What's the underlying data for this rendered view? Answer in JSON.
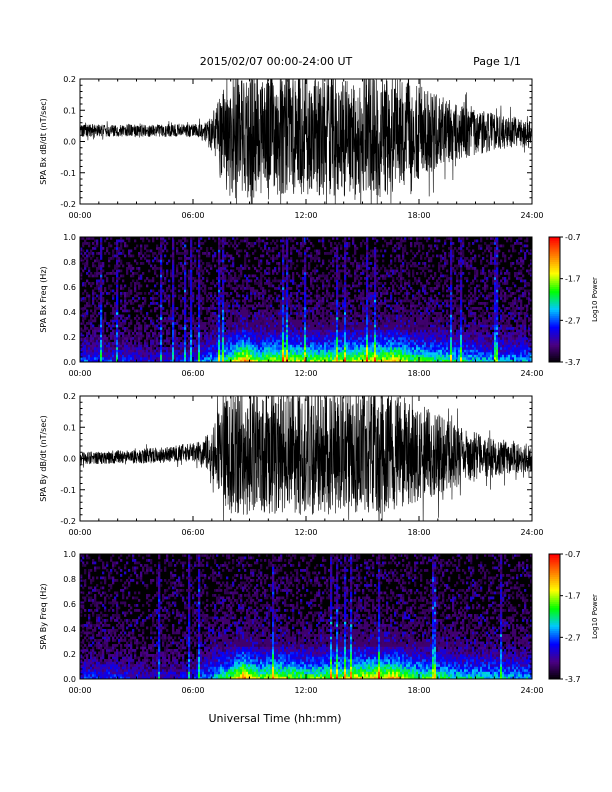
{
  "header": {
    "title": "2015/02/07  00:00-24:00 UT",
    "page": "Page 1/1"
  },
  "footer": {
    "xlabel": "Universal Time (hh:mm)"
  },
  "colorbar": {
    "label": "Log10 Power",
    "ticks": [
      "-0.7",
      "-1.7",
      "-2.7",
      "-3.7"
    ],
    "range": [
      -3.7,
      -0.7
    ],
    "colors": [
      "#000000",
      "#4b0082",
      "#0000ff",
      "#00c8ff",
      "#00ff00",
      "#ffff00",
      "#ff8000",
      "#ff0000"
    ]
  },
  "chart_data": [
    {
      "type": "line",
      "ylabel": "SPA Bx dB/dt (nT/sec)",
      "x_ticks": [
        "00:00",
        "06:00",
        "12:00",
        "18:00",
        "24:00"
      ],
      "y_ticks": [
        "0.2",
        "0.1",
        "0.0",
        "-0.1",
        "-0.2"
      ],
      "xlim": [
        0,
        24
      ],
      "ylim": [
        -0.2,
        0.2
      ],
      "envelope": {
        "x": [
          0,
          2,
          4,
          6,
          6.6,
          7,
          7.4,
          8,
          9,
          10,
          12,
          14,
          15.5,
          16,
          18,
          20,
          22,
          24
        ],
        "amplitude": [
          0.02,
          0.02,
          0.02,
          0.02,
          0.03,
          0.06,
          0.12,
          0.2,
          0.2,
          0.2,
          0.2,
          0.2,
          0.2,
          0.2,
          0.15,
          0.09,
          0.06,
          0.04
        ],
        "center": [
          0.035,
          0.035,
          0.035,
          0.035,
          0.03,
          0.025,
          0.02,
          0.01,
          0.01,
          0.02,
          0.03,
          0.02,
          0.03,
          0.02,
          0.03,
          0.03,
          0.03,
          0.03
        ]
      }
    },
    {
      "type": "heatmap",
      "ylabel": "SPA Bx Freq (Hz)",
      "x_ticks": [
        "00:00",
        "06:00",
        "12:00",
        "18:00",
        "24:00"
      ],
      "y_ticks": [
        "1.0",
        "0.8",
        "0.6",
        "0.4",
        "0.2",
        "0.0"
      ],
      "xlim": [
        0,
        24
      ],
      "ylim": [
        0,
        1.0
      ],
      "intensity_profile": {
        "x": [
          0,
          2,
          4,
          6,
          7,
          8,
          8.7,
          9.5,
          10,
          11,
          12,
          14,
          15,
          16,
          16.7,
          17.5,
          18,
          20,
          22,
          24
        ],
        "level": [
          0.32,
          0.28,
          0.22,
          0.26,
          0.42,
          0.6,
          0.88,
          0.6,
          0.68,
          0.7,
          0.62,
          0.65,
          0.7,
          0.72,
          0.78,
          0.62,
          0.6,
          0.5,
          0.42,
          0.4
        ]
      }
    },
    {
      "type": "line",
      "ylabel": "SPA By dB/dt (nT/sec)",
      "x_ticks": [
        "00:00",
        "06:00",
        "12:00",
        "18:00",
        "24:00"
      ],
      "y_ticks": [
        "0.2",
        "0.1",
        "0.0",
        "-0.1",
        "-0.2"
      ],
      "xlim": [
        0,
        24
      ],
      "ylim": [
        -0.2,
        0.2
      ],
      "envelope": {
        "x": [
          0,
          2,
          4,
          6,
          6.6,
          7,
          7.4,
          8,
          9,
          10,
          12,
          14,
          15.5,
          16,
          18,
          20,
          22,
          24
        ],
        "amplitude": [
          0.02,
          0.022,
          0.025,
          0.03,
          0.04,
          0.08,
          0.14,
          0.2,
          0.2,
          0.2,
          0.2,
          0.2,
          0.2,
          0.2,
          0.16,
          0.1,
          0.06,
          0.04
        ],
        "center": [
          0.0,
          0.005,
          0.01,
          0.02,
          0.02,
          0.02,
          0.02,
          0.02,
          0.02,
          0.02,
          0.02,
          0.02,
          0.02,
          0.02,
          0.02,
          0.01,
          0.0,
          0.0
        ]
      }
    },
    {
      "type": "heatmap",
      "ylabel": "SPA By Freq (Hz)",
      "x_ticks": [
        "00:00",
        "06:00",
        "12:00",
        "18:00",
        "24:00"
      ],
      "y_ticks": [
        "1.0",
        "0.8",
        "0.6",
        "0.4",
        "0.2",
        "0.0"
      ],
      "xlim": [
        0,
        24
      ],
      "ylim": [
        0,
        1.0
      ],
      "intensity_profile": {
        "x": [
          0,
          2,
          4,
          6,
          7,
          8,
          8.7,
          9.5,
          10,
          11,
          12,
          14,
          15,
          16,
          16.7,
          17.5,
          18,
          20,
          22,
          24
        ],
        "level": [
          0.3,
          0.28,
          0.2,
          0.24,
          0.44,
          0.62,
          0.9,
          0.62,
          0.7,
          0.68,
          0.6,
          0.66,
          0.75,
          0.76,
          0.8,
          0.64,
          0.58,
          0.5,
          0.45,
          0.42
        ]
      }
    }
  ]
}
